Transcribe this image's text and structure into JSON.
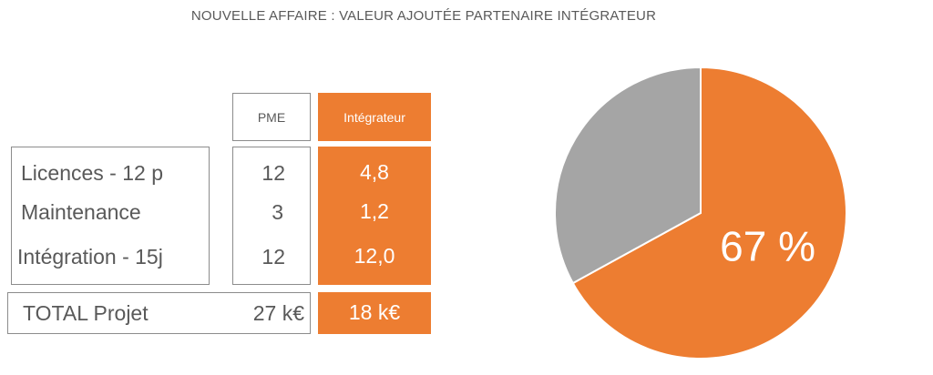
{
  "title": "NOUVELLE AFFAIRE : VALEUR AJOUTÉE PARTENAIRE INTÉGRATEUR",
  "table": {
    "headers": {
      "pme": "PME",
      "integrateur": "Intégrateur"
    },
    "rows": [
      {
        "label": "Licences - 12 p",
        "pme": "12",
        "integrateur": "4,8"
      },
      {
        "label": "Maintenance",
        "pme": "3",
        "integrateur": "1,2"
      },
      {
        "label": "Intégration - 15j",
        "pme": "12",
        "integrateur": "12,0"
      }
    ],
    "total": {
      "label": "TOTAL Projet",
      "pme": "27 k€",
      "integrateur": "18 k€"
    }
  },
  "colors": {
    "orange": "#ed7d31",
    "gray": "#a5a5a5",
    "border": "#8c8c8c",
    "text": "#595959"
  },
  "chart_data": {
    "type": "pie",
    "title": "",
    "slices": [
      {
        "value": 67,
        "color": "#ed7d31",
        "label": "67 %"
      },
      {
        "value": 33,
        "color": "#a5a5a5",
        "label": ""
      }
    ],
    "start": "12 o'clock",
    "direction": "clockwise"
  }
}
